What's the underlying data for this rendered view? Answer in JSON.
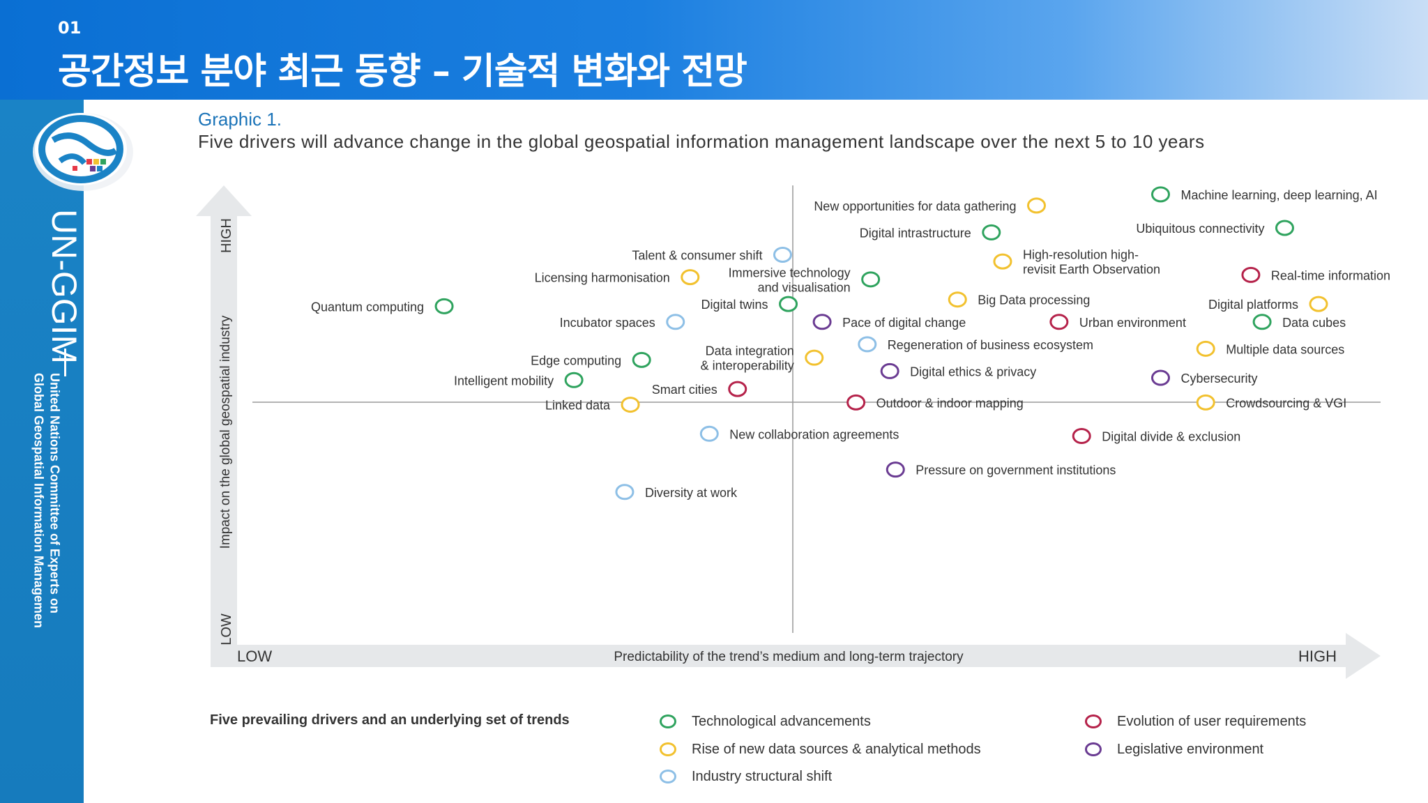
{
  "header": {
    "number": "01",
    "title": "공간정보 분야 최근 동향 – 기술적 변화와 전망"
  },
  "sidebar": {
    "acronym": "UN-GGIM",
    "full_name_line1": "United Nations Committee of Experts on",
    "full_name_line2": "Global Geospatial Information Management"
  },
  "graphic": {
    "label": "Graphic 1.",
    "subtitle": "Five drivers will advance change in the global geospatial information management landscape over the next 5 to 10 years"
  },
  "colors": {
    "technological": "#2fa35e",
    "data_sources": "#f2c12e",
    "industry": "#8dbfe6",
    "user_requirements": "#b5224a",
    "legislative": "#6a3b92"
  },
  "chart_data": {
    "type": "scatter",
    "xlabel": "Predictability of the trend’s medium and long-term trajectory",
    "ylabel": "Impact on the global geospatial industry",
    "x_low_label": "LOW",
    "x_high_label": "HIGH",
    "y_low_label": "LOW",
    "y_high_label": "HIGH",
    "xlim": [
      0,
      100
    ],
    "ylim": [
      0,
      100
    ],
    "grid": false,
    "legend_title": "Five prevailing drivers and an underlying set of trends",
    "legend_placement": "bottom",
    "categories": [
      {
        "key": "technological",
        "name": "Technological advancements"
      },
      {
        "key": "data_sources",
        "name": "Rise of new data sources & analytical methods"
      },
      {
        "key": "industry",
        "name": "Industry structural shift"
      },
      {
        "key": "user_requirements",
        "name": "Evolution of user requirements"
      },
      {
        "key": "legislative",
        "name": "Legislative environment"
      }
    ],
    "points": [
      {
        "label": "Machine learning, deep learning, AI",
        "cat": "technological",
        "x": 80.5,
        "y": 98.0,
        "side": "right"
      },
      {
        "label": "New opportunities for data gathering",
        "cat": "data_sources",
        "x": 69.5,
        "y": 95.5,
        "side": "left"
      },
      {
        "label": "Ubiquitous connectivity",
        "cat": "technological",
        "x": 91.5,
        "y": 90.5,
        "side": "left"
      },
      {
        "label": "Digital intrastructure",
        "cat": "technological",
        "x": 65.5,
        "y": 89.5,
        "side": "left"
      },
      {
        "label": "Talent & consumer shift",
        "cat": "industry",
        "x": 47.0,
        "y": 84.5,
        "side": "left"
      },
      {
        "label": "High-resolution high-\nrevisit Earth Observation",
        "cat": "data_sources",
        "x": 66.5,
        "y": 83.0,
        "side": "right"
      },
      {
        "label": "Licensing harmonisation",
        "cat": "data_sources",
        "x": 38.8,
        "y": 79.5,
        "side": "left"
      },
      {
        "label": "Immersive technology\nand visualisation",
        "cat": "technological",
        "x": 54.8,
        "y": 79.0,
        "side": "left"
      },
      {
        "label": "Real-time information",
        "cat": "user_requirements",
        "x": 88.5,
        "y": 80.0,
        "side": "right"
      },
      {
        "label": "Big Data processing",
        "cat": "data_sources",
        "x": 62.5,
        "y": 74.5,
        "side": "right"
      },
      {
        "label": "Quantum computing",
        "cat": "technological",
        "x": 17.0,
        "y": 73.0,
        "side": "left"
      },
      {
        "label": "Digital twins",
        "cat": "technological",
        "x": 47.5,
        "y": 73.5,
        "side": "left"
      },
      {
        "label": "Digital platforms",
        "cat": "data_sources",
        "x": 94.5,
        "y": 73.5,
        "side": "left"
      },
      {
        "label": "Incubator spaces",
        "cat": "industry",
        "x": 37.5,
        "y": 69.5,
        "side": "left"
      },
      {
        "label": "Pace of digital change",
        "cat": "legislative",
        "x": 50.5,
        "y": 69.5,
        "side": "right"
      },
      {
        "label": "Urban environment",
        "cat": "user_requirements",
        "x": 71.5,
        "y": 69.5,
        "side": "right"
      },
      {
        "label": "Data cubes",
        "cat": "technological",
        "x": 89.5,
        "y": 69.5,
        "side": "right"
      },
      {
        "label": "Regeneration of business ecosystem",
        "cat": "industry",
        "x": 54.5,
        "y": 64.5,
        "side": "right"
      },
      {
        "label": "Multiple data sources",
        "cat": "data_sources",
        "x": 84.5,
        "y": 63.5,
        "side": "right"
      },
      {
        "label": "Data integration\n& interoperability",
        "cat": "data_sources",
        "x": 49.8,
        "y": 61.5,
        "side": "left"
      },
      {
        "label": "Edge computing",
        "cat": "technological",
        "x": 34.5,
        "y": 61.0,
        "side": "left"
      },
      {
        "label": "Digital ethics & privacy",
        "cat": "legislative",
        "x": 56.5,
        "y": 58.5,
        "side": "right"
      },
      {
        "label": "Cybersecurity",
        "cat": "legislative",
        "x": 80.5,
        "y": 57.0,
        "side": "right"
      },
      {
        "label": "Intelligent mobility",
        "cat": "technological",
        "x": 28.5,
        "y": 56.5,
        "side": "left"
      },
      {
        "label": "Smart cities",
        "cat": "user_requirements",
        "x": 43.0,
        "y": 54.5,
        "side": "left"
      },
      {
        "label": "Outdoor & indoor mapping",
        "cat": "user_requirements",
        "x": 53.5,
        "y": 51.5,
        "side": "right"
      },
      {
        "label": "Crowdsourcing & VGI",
        "cat": "data_sources",
        "x": 84.5,
        "y": 51.5,
        "side": "right"
      },
      {
        "label": "Linked data",
        "cat": "data_sources",
        "x": 33.5,
        "y": 51.0,
        "side": "left"
      },
      {
        "label": "New collaboration agreements",
        "cat": "industry",
        "x": 40.5,
        "y": 44.5,
        "side": "right"
      },
      {
        "label": "Digital divide & exclusion",
        "cat": "user_requirements",
        "x": 73.5,
        "y": 44.0,
        "side": "right"
      },
      {
        "label": "Pressure on government institutions",
        "cat": "legislative",
        "x": 57.0,
        "y": 36.5,
        "side": "right"
      },
      {
        "label": "Diversity at work",
        "cat": "industry",
        "x": 33.0,
        "y": 31.5,
        "side": "right"
      }
    ]
  }
}
